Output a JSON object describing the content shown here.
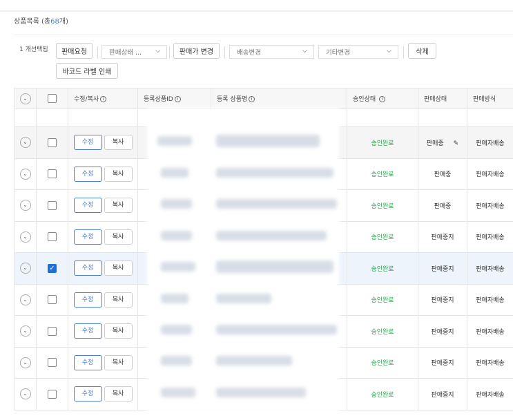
{
  "header": {
    "title": "상품목록",
    "count_prefix": "(총",
    "count": "68",
    "count_suffix": "개)"
  },
  "toolbar": {
    "selected": "1 개선택됨",
    "sale_request": "판매요청",
    "sale_status": "판매상태 ...",
    "price_change": "판매가 변경",
    "shipping_change": "배송변경",
    "other_change": "기타변경",
    "delete": "삭제",
    "barcode": "바코드 라벨 인쇄"
  },
  "columns": {
    "edit_copy": "수정/복사",
    "product_id": "등록상품ID",
    "product_name": "등록 상품명",
    "approval": "승인상태",
    "sale_status": "판매상태",
    "sale_method": "판매방식"
  },
  "labels": {
    "edit": "수정",
    "copy": "복사"
  },
  "rows": [
    {
      "approval": "승인완료",
      "status": "판매중",
      "method": "판매자배송",
      "checked": false,
      "state": "hover"
    },
    {
      "approval": "승인완료",
      "status": "판매중",
      "method": "판매자배송",
      "checked": false,
      "state": ""
    },
    {
      "approval": "승인완료",
      "status": "판매중",
      "method": "판매자배송",
      "checked": false,
      "state": ""
    },
    {
      "approval": "승인완료",
      "status": "판매중지",
      "method": "판매자배송",
      "checked": false,
      "state": ""
    },
    {
      "approval": "승인완료",
      "status": "판매중지",
      "method": "판매자배송",
      "checked": true,
      "state": "selected"
    },
    {
      "approval": "승인완료",
      "status": "판매중지",
      "method": "판매자배송",
      "checked": false,
      "state": ""
    },
    {
      "approval": "승인완료",
      "status": "판매중지",
      "method": "판매자배송",
      "checked": false,
      "state": ""
    },
    {
      "approval": "승인완료",
      "status": "판매중지",
      "method": "판매자배송",
      "checked": false,
      "state": ""
    },
    {
      "approval": "승인완료",
      "status": "판매중지",
      "method": "판매자배송",
      "checked": false,
      "state": ""
    }
  ]
}
